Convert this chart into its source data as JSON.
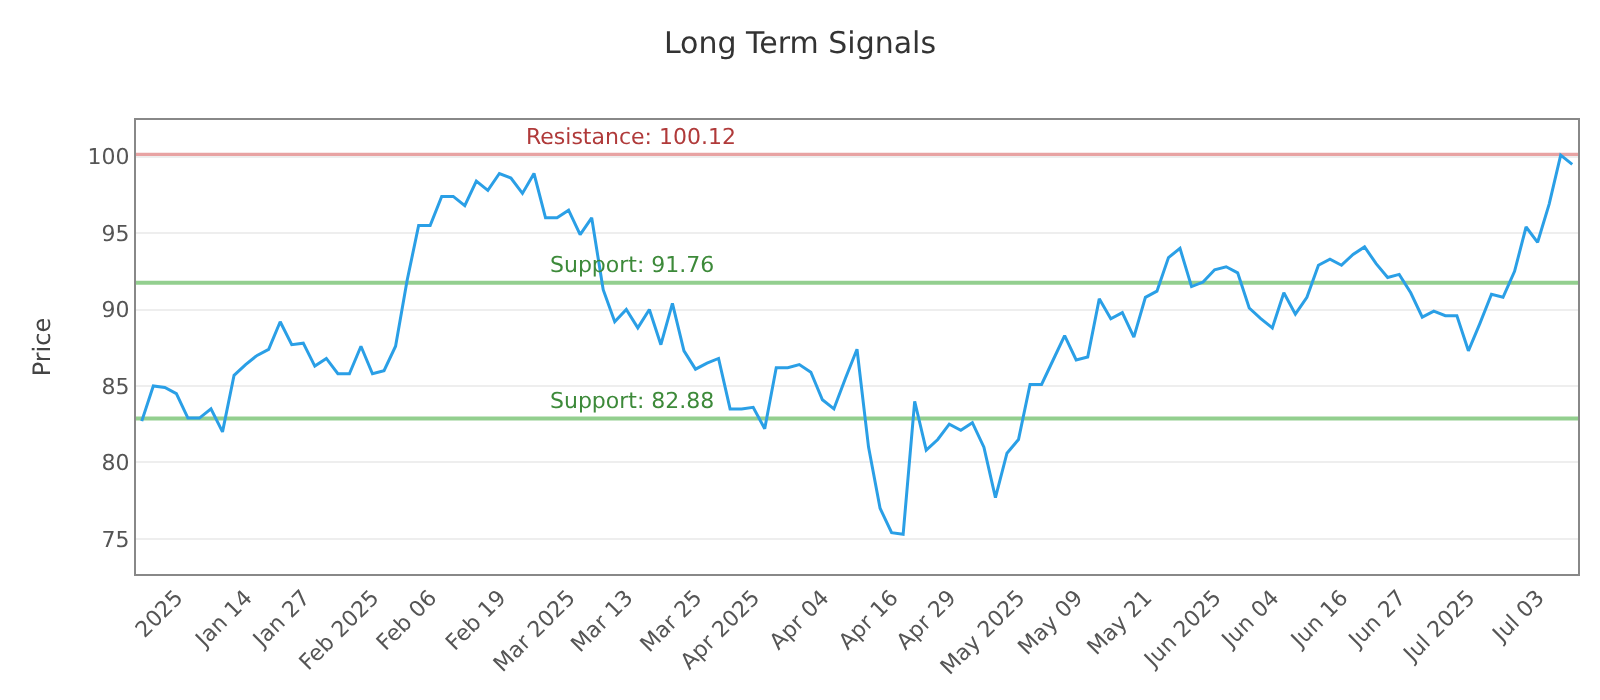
{
  "chart_data": {
    "type": "line",
    "title": "Long Term Signals",
    "ylabel": "Price",
    "categories": [
      null,
      null,
      null,
      "2025",
      null,
      null,
      null,
      null,
      null,
      "Jan 14",
      null,
      null,
      null,
      null,
      "Jan 27",
      null,
      null,
      null,
      null,
      null,
      "Feb 2025",
      null,
      null,
      null,
      null,
      "Feb 06",
      null,
      null,
      null,
      null,
      null,
      "Feb 19",
      null,
      null,
      null,
      null,
      null,
      "Mar 2025",
      null,
      null,
      null,
      null,
      "Mar 13",
      null,
      null,
      null,
      null,
      null,
      "Mar 25",
      null,
      null,
      null,
      null,
      "Apr 2025",
      null,
      null,
      null,
      null,
      null,
      "Apr 04",
      null,
      null,
      null,
      null,
      null,
      "Apr 16",
      null,
      null,
      null,
      null,
      "Apr 29",
      null,
      null,
      null,
      null,
      null,
      "May 2025",
      null,
      null,
      null,
      null,
      "May 09",
      null,
      null,
      null,
      null,
      null,
      "May 21",
      null,
      null,
      null,
      null,
      null,
      "Jun 2025",
      null,
      null,
      null,
      null,
      "Jun 04",
      null,
      null,
      null,
      null,
      null,
      "Jun 16",
      null,
      null,
      null,
      null,
      "Jun 27",
      null,
      null,
      null,
      null,
      null,
      "Jul 2025",
      null,
      null,
      null,
      null,
      null,
      "Jul 03",
      null,
      null,
      null
    ],
    "series": [
      {
        "color": "#2a9fe6",
        "values": [
          82.7,
          85.0,
          84.9,
          84.5,
          82.9,
          82.9,
          83.5,
          82.0,
          85.7,
          86.4,
          87.0,
          87.4,
          89.2,
          87.7,
          87.8,
          86.3,
          86.8,
          85.8,
          85.8,
          87.6,
          85.8,
          86.0,
          87.6,
          91.9,
          95.5,
          95.5,
          97.4,
          97.4,
          96.8,
          98.4,
          97.8,
          98.9,
          98.6,
          97.6,
          98.9,
          96.0,
          96.0,
          96.5,
          94.9,
          96.0,
          91.3,
          89.2,
          90.0,
          88.8,
          90.0,
          87.7,
          90.4,
          87.3,
          86.1,
          86.5,
          86.8,
          83.5,
          83.5,
          83.6,
          82.2,
          86.2,
          86.2,
          86.4,
          85.9,
          84.1,
          83.5,
          85.5,
          87.4,
          81.0,
          77.0,
          75.4,
          75.3,
          84.0,
          80.8,
          81.5,
          82.5,
          82.1,
          82.6,
          81.0,
          77.7,
          80.6,
          81.5,
          85.1,
          85.1,
          86.7,
          88.3,
          86.7,
          86.9,
          90.7,
          89.4,
          89.8,
          88.2,
          90.8,
          91.2,
          93.4,
          94.0,
          91.5,
          91.8,
          92.6,
          92.8,
          92.4,
          90.1,
          89.4,
          88.8,
          91.1,
          89.7,
          90.8,
          92.9,
          93.3,
          92.9,
          93.6,
          94.1,
          93.0,
          92.1,
          92.3,
          91.1,
          89.5,
          89.9,
          89.6,
          89.6,
          87.3,
          89.1,
          91.0,
          90.8,
          92.5,
          95.4,
          94.4,
          96.9,
          100.1,
          99.5
        ]
      }
    ],
    "ylim": [
      72.7,
      102.4
    ],
    "yticks": [
      75,
      80,
      85,
      90,
      95,
      100
    ],
    "grid": "y",
    "marker": "none",
    "line_style": "solid",
    "ref_lines": [
      {
        "axis": "y",
        "value": 100.12,
        "label": "Resistance: 100.12",
        "color": "#e8a3a3"
      },
      {
        "axis": "y",
        "value": 91.76,
        "label": "Support: 91.76",
        "color": "#93cf8f"
      },
      {
        "axis": "y",
        "value": 82.88,
        "label": "Support: 82.88",
        "color": "#93cf8f"
      }
    ]
  }
}
